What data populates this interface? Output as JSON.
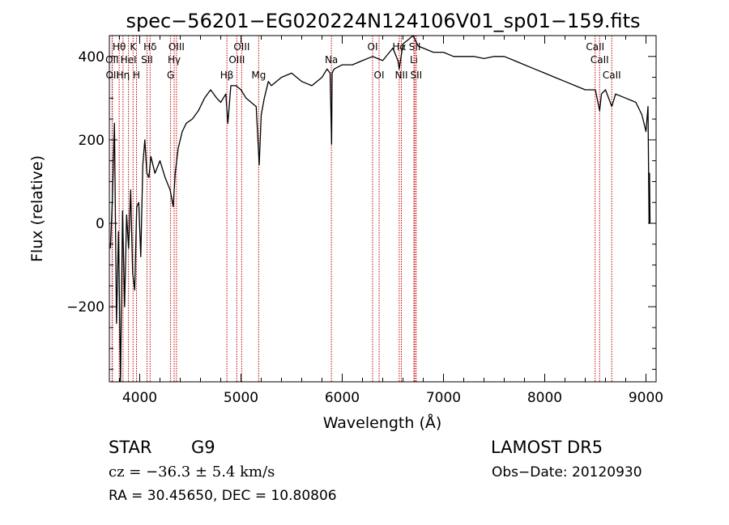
{
  "chart_data": {
    "type": "line",
    "title": "spec−56201−EG020224N124106V01_sp01−159.fits",
    "xlabel": "Wavelength (Å)",
    "ylabel": "Flux (relative)",
    "xlim": [
      3700,
      9100
    ],
    "ylim": [
      -380,
      450
    ],
    "x_ticks": [
      4000,
      5000,
      6000,
      7000,
      8000,
      9000
    ],
    "y_ticks": [
      -200,
      0,
      200,
      400
    ],
    "grid": false,
    "series": [
      {
        "color": "#000000",
        "x": [
          3710,
          3730,
          3750,
          3770,
          3790,
          3810,
          3830,
          3850,
          3870,
          3890,
          3910,
          3930,
          3950,
          3970,
          3990,
          4010,
          4030,
          4050,
          4070,
          4090,
          4110,
          4150,
          4200,
          4250,
          4300,
          4330,
          4350,
          4380,
          4420,
          4460,
          4520,
          4580,
          4640,
          4700,
          4760,
          4800,
          4850,
          4870,
          4900,
          4950,
          5000,
          5050,
          5100,
          5150,
          5180,
          5200,
          5230,
          5270,
          5300,
          5400,
          5500,
          5600,
          5700,
          5800,
          5850,
          5880,
          5895,
          5900,
          5920,
          6000,
          6100,
          6200,
          6300,
          6400,
          6500,
          6550,
          6563,
          6600,
          6650,
          6700,
          6750,
          6800,
          6900,
          7000,
          7100,
          7200,
          7300,
          7400,
          7500,
          7600,
          7700,
          7800,
          7900,
          8000,
          8100,
          8200,
          8300,
          8400,
          8500,
          8542,
          8560,
          8600,
          8662,
          8700,
          8800,
          8900,
          8960,
          9000,
          9020,
          9030,
          9035,
          9040
        ],
        "y": [
          -60,
          60,
          240,
          -240,
          -20,
          -380,
          30,
          -200,
          20,
          -60,
          80,
          -120,
          -160,
          40,
          50,
          -80,
          140,
          200,
          120,
          110,
          160,
          120,
          150,
          110,
          80,
          40,
          120,
          180,
          220,
          240,
          250,
          270,
          300,
          320,
          300,
          290,
          310,
          240,
          330,
          330,
          320,
          300,
          290,
          280,
          140,
          260,
          300,
          340,
          330,
          350,
          360,
          340,
          330,
          350,
          370,
          360,
          190,
          360,
          370,
          380,
          380,
          390,
          400,
          390,
          420,
          390,
          370,
          430,
          440,
          450,
          425,
          420,
          410,
          410,
          400,
          400,
          400,
          395,
          400,
          400,
          390,
          380,
          370,
          360,
          350,
          340,
          330,
          320,
          320,
          270,
          310,
          320,
          280,
          310,
          300,
          290,
          260,
          220,
          280,
          0,
          120,
          0
        ]
      }
    ],
    "lines": [
      {
        "label": "Hθ",
        "x": 3797,
        "row": 0
      },
      {
        "label": "K",
        "x": 3934,
        "row": 0
      },
      {
        "label": "Hδ",
        "x": 4102,
        "row": 0
      },
      {
        "label": "OIII",
        "x": 4363,
        "row": 0
      },
      {
        "label": "OIII",
        "x": 5007,
        "row": 0
      },
      {
        "label": "OI",
        "x": 6300,
        "row": 0
      },
      {
        "label": "Hα",
        "x": 6563,
        "row": 0
      },
      {
        "label": "SII",
        "x": 6717,
        "row": 0
      },
      {
        "label": "CaII",
        "x": 8498,
        "row": 0
      },
      {
        "label": "OII",
        "x": 3727,
        "row": 1
      },
      {
        "label": "HeI",
        "x": 3889,
        "row": 1
      },
      {
        "label": "SII",
        "x": 4072,
        "row": 1
      },
      {
        "label": "Hγ",
        "x": 4340,
        "row": 1
      },
      {
        "label": "OIII",
        "x": 4959,
        "row": 1
      },
      {
        "label": "Na",
        "x": 5893,
        "row": 1
      },
      {
        "label": "Li",
        "x": 6708,
        "row": 1
      },
      {
        "label": "CaII",
        "x": 8542,
        "row": 1
      },
      {
        "label": "OII",
        "x": 3730,
        "row": 2
      },
      {
        "label": "Hη",
        "x": 3835,
        "row": 2
      },
      {
        "label": "H",
        "x": 3968,
        "row": 2
      },
      {
        "label": "G",
        "x": 4305,
        "row": 2
      },
      {
        "label": "Hβ",
        "x": 4861,
        "row": 2
      },
      {
        "label": "Mg",
        "x": 5175,
        "row": 2
      },
      {
        "label": "OI",
        "x": 6364,
        "row": 2
      },
      {
        "label": "NII",
        "x": 6584,
        "row": 2
      },
      {
        "label": "SII",
        "x": 6731,
        "row": 2
      },
      {
        "label": "CaII",
        "x": 8662,
        "row": 2
      }
    ]
  },
  "info": {
    "class": "STAR",
    "subclass": "G9",
    "survey": "LAMOST DR5",
    "cz": "cz = −36.3 ± 5.4 km/s",
    "obs_date": "Obs−Date: 20120930",
    "coords": "RA =  30.45650, DEC =  10.80806"
  },
  "colors": {
    "line_marker": "#c00000",
    "spectrum": "#000000"
  }
}
